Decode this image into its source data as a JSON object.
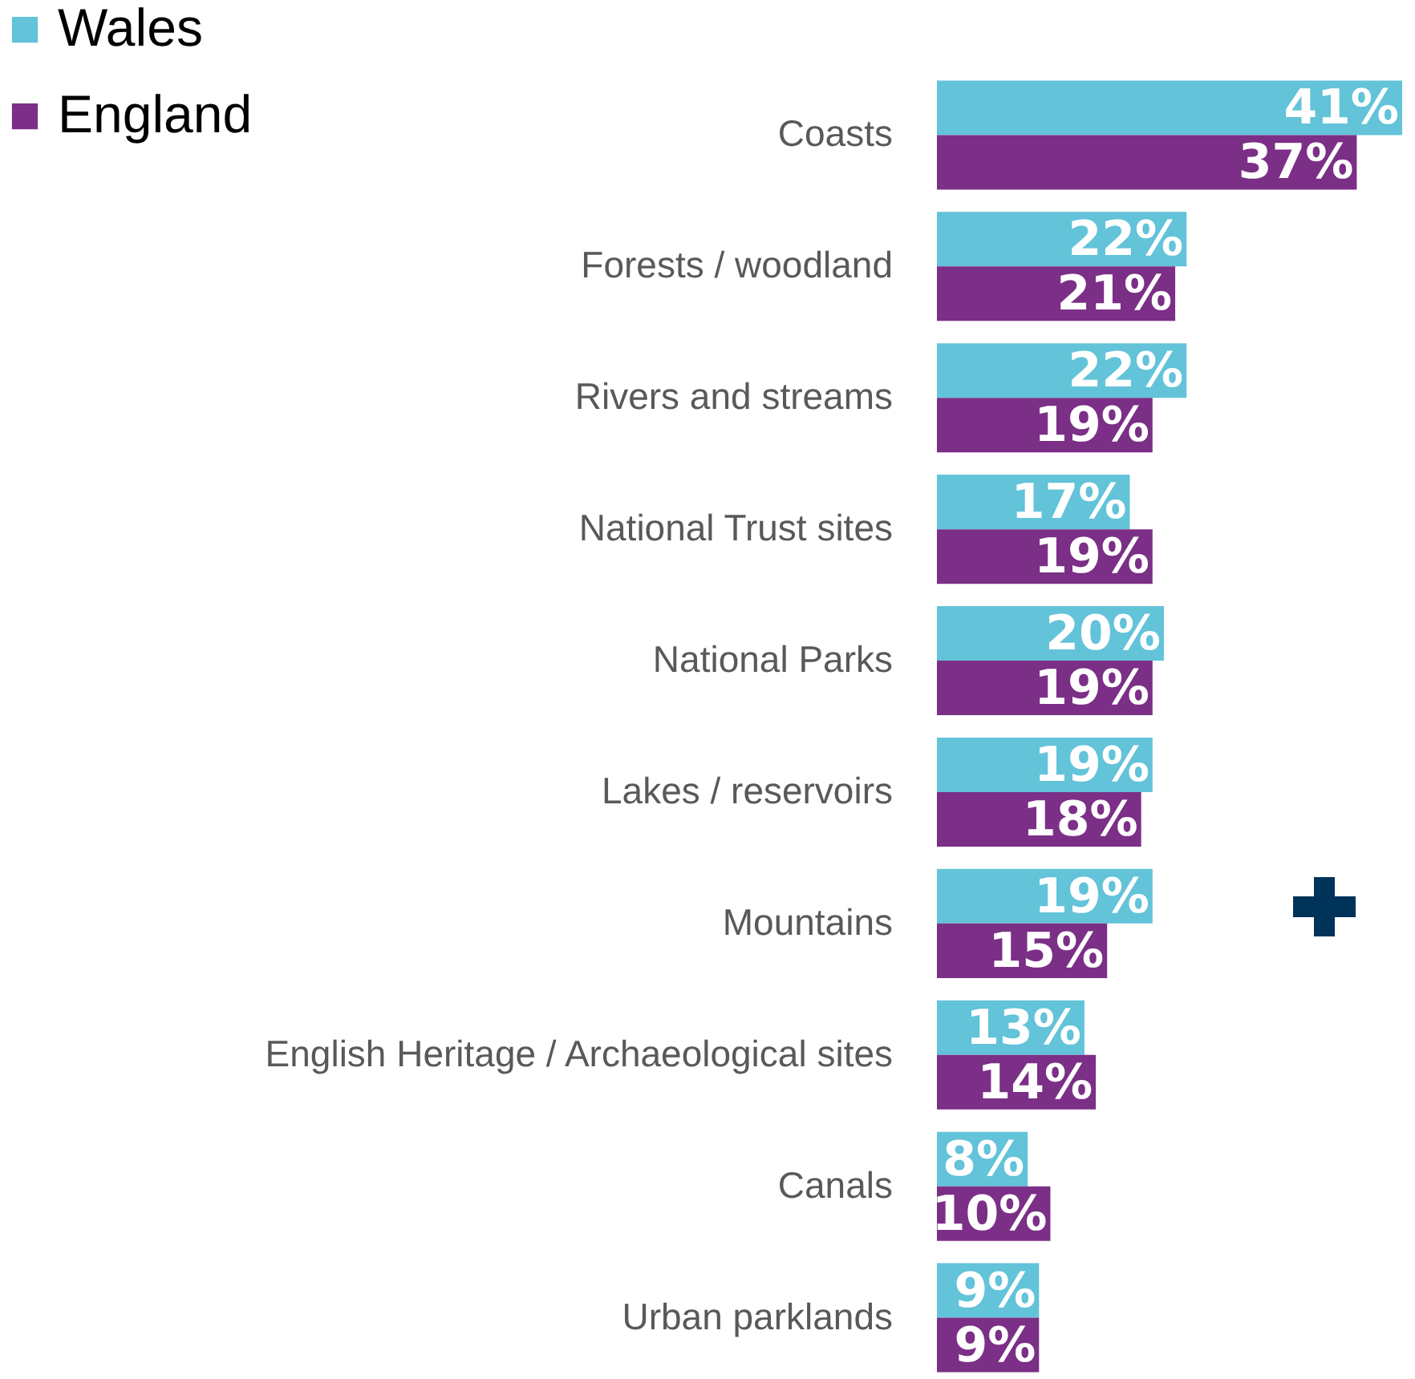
{
  "chart_data": {
    "type": "bar",
    "orientation": "horizontal",
    "categories": [
      "Coasts",
      "Forests / woodland",
      "Rivers and streams",
      "National Trust sites",
      "National Parks",
      "Lakes / reservoirs",
      "Mountains",
      "English Heritage / Archaeological sites",
      "Canals",
      "Urban parklands"
    ],
    "series": [
      {
        "name": "Wales",
        "color": "#62c3d9",
        "values": [
          41,
          22,
          22,
          17,
          20,
          19,
          19,
          13,
          8,
          9
        ],
        "value_labels": [
          "41%",
          "22%",
          "22%",
          "17%",
          "20%",
          "19%",
          "19%",
          "13%",
          "8%",
          "9%"
        ]
      },
      {
        "name": "England",
        "color": "#7b2f86",
        "values": [
          37,
          21,
          19,
          19,
          19,
          18,
          15,
          14,
          10,
          9
        ],
        "value_labels": [
          "37%",
          "21%",
          "19%",
          "19%",
          "19%",
          "18%",
          "15%",
          "14%",
          "10%",
          "9%"
        ]
      }
    ],
    "xlim": [
      0,
      41
    ],
    "tick_labels": "y",
    "legend": "top left"
  }
}
